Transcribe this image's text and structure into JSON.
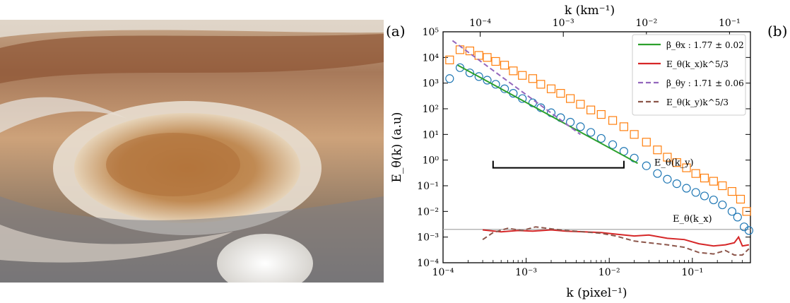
{
  "panel_a_label": "(a)",
  "panel_b_label": "(b)",
  "photo_description_icon": "jupiter-great-red-spot-image",
  "chart_data": {
    "type": "scatter",
    "scale": {
      "x": "log",
      "y": "log"
    },
    "xlim": [
      0.0001,
      0.5
    ],
    "ylim": [
      0.0001,
      100000
    ],
    "xlabel": "k (pixel⁻¹)",
    "ylabel": "E_θ(k) (a.u)",
    "top_xlabel": "k (km⁻¹)",
    "x_ticks": [
      "10⁻⁴",
      "10⁻³",
      "10⁻²",
      "10⁻¹"
    ],
    "x_tick_values": [
      0.0001,
      0.001,
      0.01,
      0.1
    ],
    "top_x_ticks": [
      "10⁻⁴",
      "10⁻³",
      "10⁻²",
      "10⁻¹"
    ],
    "top_x_tick_values": [
      0.0001,
      0.001,
      0.01,
      0.1
    ],
    "top_to_bottom_factor": 2.8,
    "y_ticks": [
      "10⁻⁴",
      "10⁻³",
      "10⁻²",
      "10⁻¹",
      "10⁰",
      "10¹",
      "10²",
      "10³",
      "10⁴",
      "10⁵"
    ],
    "y_tick_values": [
      0.0001,
      0.001,
      0.01,
      0.1,
      1,
      10,
      100,
      1000,
      10000,
      100000
    ],
    "legend_position": "top-right",
    "legend": [
      {
        "label": "β_θx : 1.77 ± 0.02",
        "color": "#2ca02c",
        "style": "solid"
      },
      {
        "label": "E_θ(k_x)k^5/3",
        "color": "#d62728",
        "style": "solid"
      },
      {
        "label": "β_θy : 1.71 ± 0.06",
        "color": "#9467bd",
        "style": "dashed"
      },
      {
        "label": "E_θ(k_y)k^5/3",
        "color": "#8c564b",
        "style": "dashed"
      }
    ],
    "annotations": [
      {
        "text": "E_θ(k_y)",
        "x": 0.06,
        "y": 0.6
      },
      {
        "text": "E_θ(k_x)",
        "x": 0.1,
        "y": 0.004
      }
    ],
    "reference_line": {
      "y": 0.002,
      "color": "#aaaaaa"
    },
    "bracket": {
      "x": [
        0.0004,
        0.015
      ],
      "y": 0.5,
      "color": "#000000"
    },
    "series": [
      {
        "name": "E_θ(k_x)",
        "marker": "circle",
        "color": "#1f77b4",
        "x": [
          0.00012,
          0.00016,
          0.00021,
          0.00027,
          0.00034,
          0.00043,
          0.00055,
          0.0007,
          0.0009,
          0.0012,
          0.0015,
          0.002,
          0.0026,
          0.0034,
          0.0045,
          0.006,
          0.008,
          0.011,
          0.015,
          0.02,
          0.028,
          0.038,
          0.05,
          0.065,
          0.085,
          0.11,
          0.14,
          0.18,
          0.23,
          0.3,
          0.35,
          0.42,
          0.48
        ],
        "y": [
          1500,
          4000,
          2500,
          1800,
          1300,
          900,
          600,
          400,
          250,
          170,
          110,
          70,
          45,
          30,
          20,
          12,
          7,
          4,
          2.2,
          1.2,
          0.6,
          0.3,
          0.18,
          0.12,
          0.08,
          0.055,
          0.04,
          0.028,
          0.018,
          0.01,
          0.006,
          0.0025,
          0.0018
        ]
      },
      {
        "name": "E_θ(k_y)",
        "marker": "square",
        "color": "#ff7f0e",
        "x": [
          0.00012,
          0.00016,
          0.00021,
          0.00027,
          0.00034,
          0.00043,
          0.00055,
          0.0007,
          0.0009,
          0.0012,
          0.0015,
          0.002,
          0.0026,
          0.0034,
          0.0045,
          0.006,
          0.008,
          0.011,
          0.015,
          0.02,
          0.028,
          0.038,
          0.05,
          0.065,
          0.085,
          0.11,
          0.14,
          0.18,
          0.23,
          0.3,
          0.38,
          0.45
        ],
        "y": [
          8000,
          20000,
          18000,
          12000,
          10000,
          7000,
          5000,
          3000,
          2000,
          1500,
          900,
          600,
          400,
          250,
          150,
          90,
          60,
          35,
          20,
          10,
          5,
          2.5,
          1.3,
          0.8,
          0.5,
          0.3,
          0.2,
          0.15,
          0.1,
          0.06,
          0.03,
          0.01
        ]
      },
      {
        "name": "β_θx : 1.77 ± 0.02",
        "marker": "none",
        "color": "#2ca02c",
        "style": "solid",
        "x": [
          0.00015,
          0.022
        ],
        "y": [
          5000,
          0.75
        ]
      },
      {
        "name": "β_θy : 1.71 ± 0.06",
        "marker": "none",
        "color": "#9467bd",
        "style": "dashed",
        "x": [
          0.00013,
          0.0045
        ],
        "y": [
          45000,
          10
        ]
      },
      {
        "name": "E_θ(k_x)k^5/3",
        "marker": "none",
        "color": "#d62728",
        "style": "solid",
        "x": [
          0.0003,
          0.0005,
          0.0008,
          0.0012,
          0.002,
          0.003,
          0.005,
          0.008,
          0.012,
          0.02,
          0.03,
          0.05,
          0.08,
          0.12,
          0.18,
          0.25,
          0.32,
          0.36,
          0.4,
          0.48
        ],
        "y": [
          0.0019,
          0.0016,
          0.0018,
          0.0017,
          0.0019,
          0.0017,
          0.0016,
          0.0015,
          0.0013,
          0.0011,
          0.0012,
          0.0009,
          0.0008,
          0.00055,
          0.00045,
          0.0005,
          0.0006,
          0.001,
          0.00045,
          0.0005
        ]
      },
      {
        "name": "E_θ(k_y)k^5/3",
        "marker": "none",
        "color": "#8c564b",
        "style": "dashed",
        "x": [
          0.0003,
          0.0004,
          0.0006,
          0.0009,
          0.0013,
          0.002,
          0.003,
          0.005,
          0.008,
          0.012,
          0.02,
          0.03,
          0.05,
          0.08,
          0.12,
          0.18,
          0.25,
          0.32,
          0.4,
          0.48
        ],
        "y": [
          0.0008,
          0.0015,
          0.0022,
          0.0018,
          0.0025,
          0.0021,
          0.0018,
          0.0016,
          0.0014,
          0.0011,
          0.0007,
          0.0006,
          0.0005,
          0.0004,
          0.00025,
          0.00022,
          0.0003,
          0.0002,
          0.0002,
          0.00035
        ]
      }
    ]
  }
}
